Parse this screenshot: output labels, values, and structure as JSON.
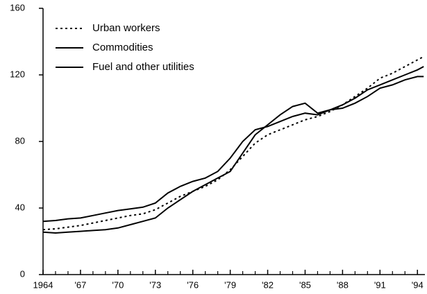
{
  "chart_data": {
    "type": "line",
    "x": [
      1964,
      1965,
      1966,
      1967,
      1968,
      1969,
      1970,
      1971,
      1972,
      1973,
      1974,
      1975,
      1976,
      1977,
      1978,
      1979,
      1980,
      1981,
      1982,
      1983,
      1984,
      1985,
      1986,
      1987,
      1988,
      1989,
      1990,
      1991,
      1992,
      1993,
      1994,
      1994.5
    ],
    "series": [
      {
        "name": "Urban workers",
        "color": "#000000",
        "style": "dotted",
        "values": [
          27,
          27.5,
          28.5,
          29.5,
          31,
          32.5,
          34,
          35.5,
          36.5,
          39,
          43,
          47,
          50,
          53,
          57,
          63,
          71,
          79,
          84,
          87,
          90,
          93,
          95,
          98,
          102,
          107,
          112,
          118,
          121,
          125,
          129,
          131
        ]
      },
      {
        "name": "Commodities",
        "color": "#000000",
        "style": "solid",
        "values": [
          32,
          32.5,
          33.5,
          34,
          35.5,
          37,
          38.5,
          39.5,
          40.5,
          43,
          49,
          53,
          56,
          58,
          62,
          70,
          80,
          87,
          89,
          92,
          95,
          97,
          96,
          99,
          102,
          106,
          111,
          114,
          117,
          120,
          123,
          125
        ]
      },
      {
        "name": "Fuel and other utilities",
        "color": "#000000",
        "style": "solid",
        "values": [
          25.5,
          25,
          25.5,
          26,
          26.5,
          27,
          28,
          30,
          32,
          34,
          40,
          45,
          50,
          54,
          58,
          62,
          73,
          84,
          90,
          96,
          101,
          103,
          97,
          99,
          100,
          103,
          107,
          112,
          114,
          117,
          119,
          119
        ]
      }
    ],
    "xlim": [
      1964,
      1994.6
    ],
    "xticks": [
      1964,
      {
        "value": 1967,
        "label": "'67"
      },
      {
        "value": 1970,
        "label": "'70"
      },
      {
        "value": 1973,
        "label": "'73"
      },
      {
        "value": 1976,
        "label": "'76"
      },
      {
        "value": 1979,
        "label": "'79"
      },
      {
        "value": 1982,
        "label": "'82"
      },
      {
        "value": 1985,
        "label": "'85"
      },
      {
        "value": 1988,
        "label": "'88"
      },
      {
        "value": 1991,
        "label": "'91"
      },
      {
        "value": 1994,
        "label": "'94"
      }
    ],
    "xminorticks": [
      1965,
      1966,
      1968,
      1969,
      1971,
      1972,
      1974,
      1975,
      1977,
      1978,
      1980,
      1981,
      1983,
      1984,
      1986,
      1987,
      1989,
      1990,
      1992,
      1993
    ],
    "ylim": [
      0,
      160
    ],
    "yticks": [
      0,
      40,
      80,
      120,
      160
    ],
    "legend": "upper left"
  }
}
